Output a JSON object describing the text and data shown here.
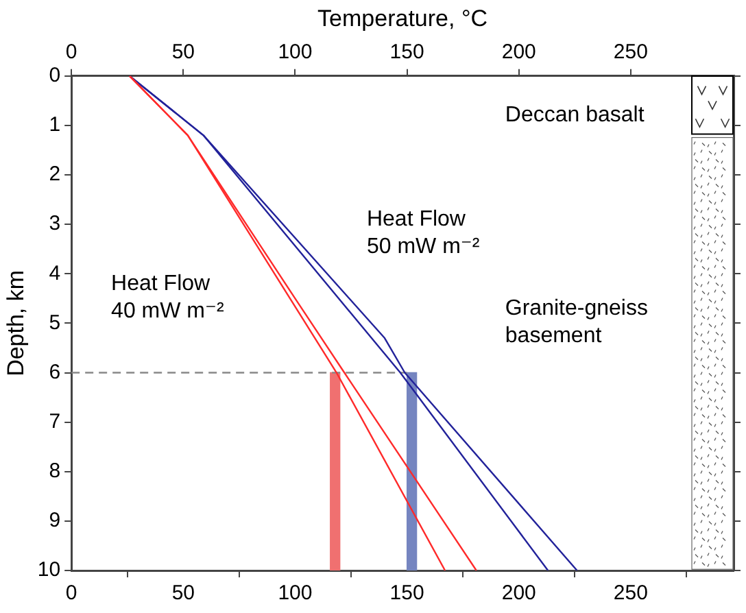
{
  "chart_data": {
    "type": "line",
    "x2label": "Temperature, °C",
    "ylabel": "Depth, km",
    "xlim": [
      0,
      296
    ],
    "xticks": [
      0,
      50,
      100,
      150,
      200,
      250
    ],
    "x2lim": [
      0,
      296
    ],
    "x2ticks": [
      0,
      50,
      100,
      150,
      200,
      250
    ],
    "ylim": [
      10,
      0
    ],
    "yticks": [
      0,
      1,
      2,
      3,
      4,
      5,
      6,
      7,
      8,
      9,
      10
    ],
    "marker": "none",
    "series": [
      {
        "color": "#ff2a2a",
        "x": [
          26,
          52,
          118.5,
          167
        ],
        "values": [
          0,
          1.2,
          6,
          10
        ]
      },
      {
        "color": "#ff2a2a",
        "x": [
          26,
          52,
          100,
          122,
          181
        ],
        "values": [
          0,
          1.2,
          4.5,
          6,
          10
        ]
      },
      {
        "color": "#22229a",
        "x": [
          26,
          59,
          147,
          213
        ],
        "values": [
          0,
          1.2,
          6,
          10
        ]
      },
      {
        "color": "#22229a",
        "x": [
          26,
          59,
          140,
          149,
          226
        ],
        "values": [
          0,
          1.2,
          5.3,
          6,
          10
        ]
      },
      {
        "color": "#888888",
        "line_style": "dashed",
        "x": [
          0,
          150
        ],
        "values": [
          6,
          6
        ]
      },
      {
        "type": "bar",
        "color": "#f07070",
        "x": [
          120
        ],
        "base": [
          6
        ],
        "values": [
          4
        ]
      },
      {
        "type": "bar",
        "color": "#7585c0",
        "x": [
          150
        ],
        "base": [
          6
        ],
        "values": [
          4
        ]
      }
    ],
    "annotations": [
      "Heat Flow\n50 mW m⁻²",
      "Heat Flow\n40 mW m⁻²",
      "Deccan basalt",
      "Granite-gneiss\nbasement"
    ]
  }
}
